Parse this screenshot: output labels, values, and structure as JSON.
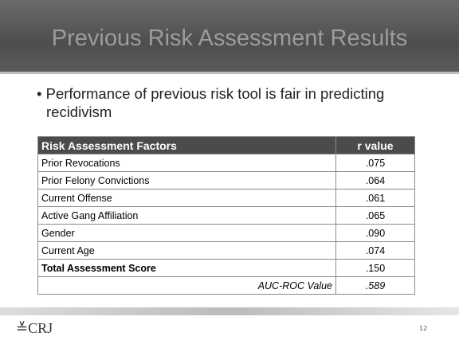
{
  "header": {
    "title": "Previous Risk Assessment Results"
  },
  "bullet": "Performance of previous risk tool is fair in predicting recidivism",
  "table": {
    "columns": [
      "Risk Assessment Factors",
      "r value"
    ],
    "rows": [
      [
        "Prior Revocations",
        ".075"
      ],
      [
        "Prior Felony Convictions",
        ".064"
      ],
      [
        "Current Offense",
        ".061"
      ],
      [
        "Active Gang Affiliation",
        ".065"
      ],
      [
        "Gender",
        ".090"
      ],
      [
        "Current Age",
        ".074"
      ],
      [
        "Total Assessment Score",
        ".150"
      ]
    ],
    "footer_row": [
      "AUC-ROC Value",
      ".589"
    ]
  },
  "footer": {
    "logo": "CRJ",
    "page": "12"
  }
}
